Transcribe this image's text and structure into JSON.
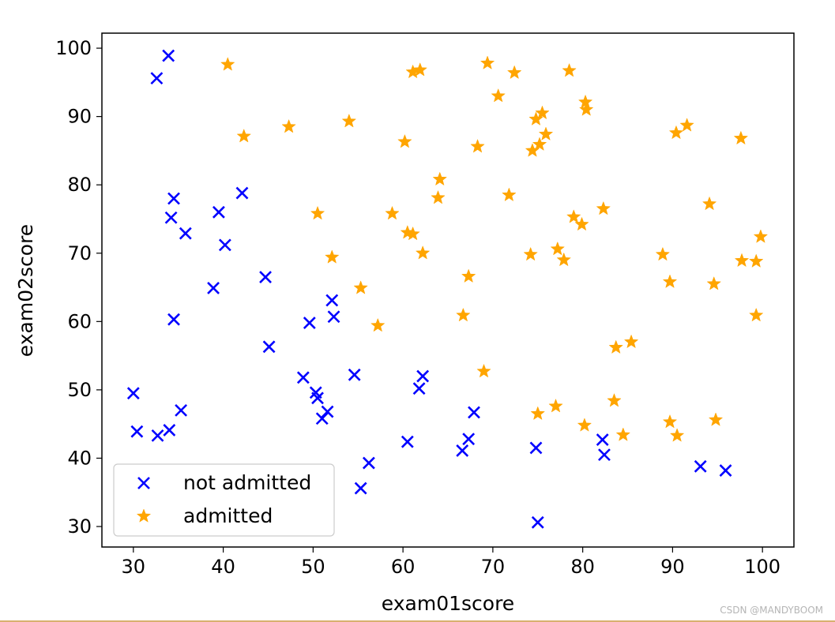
{
  "chart_data": {
    "type": "scatter",
    "title": "",
    "xlabel": "exam01score",
    "ylabel": "exam02score",
    "xlim": [
      26.5,
      103.5
    ],
    "ylim": [
      27,
      102.2
    ],
    "xticks": [
      30,
      40,
      50,
      60,
      70,
      80,
      90,
      100
    ],
    "yticks": [
      30,
      40,
      50,
      60,
      70,
      80,
      90,
      100
    ],
    "grid": false,
    "legend_position": "lower-left",
    "series": [
      {
        "name": "not admitted",
        "marker": "x",
        "color": "#0000ff",
        "points": [
          [
            33.9,
            98.9
          ],
          [
            32.6,
            95.6
          ],
          [
            42.1,
            78.8
          ],
          [
            34.5,
            78.0
          ],
          [
            39.5,
            76.0
          ],
          [
            34.2,
            75.2
          ],
          [
            35.8,
            72.9
          ],
          [
            40.2,
            71.2
          ],
          [
            44.7,
            66.5
          ],
          [
            38.9,
            64.9
          ],
          [
            52.1,
            63.1
          ],
          [
            52.3,
            60.7
          ],
          [
            34.5,
            60.3
          ],
          [
            49.6,
            59.8
          ],
          [
            45.1,
            56.3
          ],
          [
            54.6,
            52.2
          ],
          [
            62.2,
            52.0
          ],
          [
            48.9,
            51.8
          ],
          [
            61.8,
            50.2
          ],
          [
            30.0,
            49.5
          ],
          [
            50.3,
            49.6
          ],
          [
            50.5,
            48.8
          ],
          [
            35.3,
            47.0
          ],
          [
            51.6,
            46.8
          ],
          [
            67.9,
            46.7
          ],
          [
            51.0,
            45.8
          ],
          [
            30.4,
            43.9
          ],
          [
            34.0,
            44.1
          ],
          [
            32.7,
            43.3
          ],
          [
            67.3,
            42.8
          ],
          [
            82.2,
            42.7
          ],
          [
            60.5,
            42.4
          ],
          [
            66.6,
            41.1
          ],
          [
            74.8,
            41.5
          ],
          [
            82.4,
            40.5
          ],
          [
            56.2,
            39.3
          ],
          [
            93.1,
            38.8
          ],
          [
            95.9,
            38.2
          ],
          [
            55.3,
            35.6
          ],
          [
            75.0,
            30.6
          ]
        ]
      },
      {
        "name": "admitted",
        "marker": "*",
        "color": "#ffa500",
        "points": [
          [
            40.5,
            97.6
          ],
          [
            61.1,
            96.5
          ],
          [
            61.9,
            96.8
          ],
          [
            69.4,
            97.8
          ],
          [
            72.4,
            96.4
          ],
          [
            78.5,
            96.7
          ],
          [
            70.6,
            93.0
          ],
          [
            80.3,
            92.1
          ],
          [
            80.4,
            91.0
          ],
          [
            75.5,
            90.5
          ],
          [
            74.8,
            89.6
          ],
          [
            54.0,
            89.3
          ],
          [
            91.6,
            88.7
          ],
          [
            47.3,
            88.5
          ],
          [
            90.4,
            87.6
          ],
          [
            75.9,
            87.4
          ],
          [
            42.3,
            87.1
          ],
          [
            97.6,
            86.8
          ],
          [
            60.2,
            86.3
          ],
          [
            75.2,
            85.9
          ],
          [
            68.3,
            85.6
          ],
          [
            74.4,
            85.0
          ],
          [
            64.1,
            80.8
          ],
          [
            71.8,
            78.5
          ],
          [
            63.9,
            78.1
          ],
          [
            82.3,
            76.5
          ],
          [
            94.1,
            77.2
          ],
          [
            58.8,
            75.8
          ],
          [
            50.5,
            75.8
          ],
          [
            79.0,
            75.3
          ],
          [
            79.9,
            74.2
          ],
          [
            60.5,
            73.0
          ],
          [
            61.1,
            72.8
          ],
          [
            99.8,
            72.4
          ],
          [
            77.2,
            70.6
          ],
          [
            62.2,
            70.0
          ],
          [
            74.2,
            69.8
          ],
          [
            52.1,
            69.4
          ],
          [
            88.9,
            69.8
          ],
          [
            77.9,
            69.0
          ],
          [
            97.7,
            68.9
          ],
          [
            99.3,
            68.8
          ],
          [
            67.3,
            66.6
          ],
          [
            89.7,
            65.8
          ],
          [
            94.6,
            65.5
          ],
          [
            55.3,
            64.9
          ],
          [
            57.2,
            59.4
          ],
          [
            66.7,
            60.9
          ],
          [
            99.3,
            60.9
          ],
          [
            85.4,
            57.0
          ],
          [
            83.7,
            56.2
          ],
          [
            69.0,
            52.7
          ],
          [
            83.5,
            48.4
          ],
          [
            77.0,
            47.6
          ],
          [
            75.0,
            46.5
          ],
          [
            80.2,
            44.8
          ],
          [
            94.8,
            45.6
          ],
          [
            89.7,
            45.3
          ],
          [
            84.5,
            43.4
          ],
          [
            90.5,
            43.3
          ]
        ]
      }
    ]
  },
  "watermark": "CSDN @MANDYBOOM"
}
